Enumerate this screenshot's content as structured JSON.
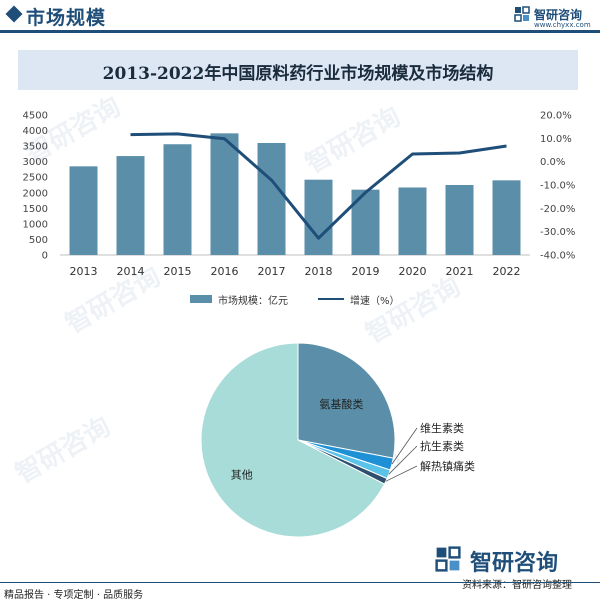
{
  "header": {
    "title": "市场规模",
    "brand_name": "智研咨询",
    "brand_url": "www.chyxx.com"
  },
  "chart_title": "2013-2022年中国原料药行业市场规模及市场结构",
  "chart_data": [
    {
      "type": "bar",
      "title": "2013-2022年中国原料药行业市场规模及市场结构",
      "categories": [
        "2013",
        "2014",
        "2015",
        "2016",
        "2017",
        "2018",
        "2019",
        "2020",
        "2021",
        "2022"
      ],
      "series": [
        {
          "name": "市场规模：亿元",
          "type": "bar",
          "axis": "left",
          "color": "#5b8ea9",
          "values": [
            2850,
            3180,
            3560,
            3910,
            3600,
            2420,
            2100,
            2170,
            2250,
            2400
          ]
        },
        {
          "name": "增速（%）",
          "type": "line",
          "axis": "right",
          "color": "#1f4e79",
          "values": [
            null,
            11.6,
            11.9,
            9.8,
            -7.9,
            -32.8,
            -13.2,
            3.3,
            3.7,
            6.7
          ]
        }
      ],
      "y_left": {
        "ylim": [
          0,
          4500
        ],
        "ticks": [
          "0",
          "500",
          "1000",
          "1500",
          "2000",
          "2500",
          "3000",
          "3500",
          "4000",
          "4500"
        ]
      },
      "y_right": {
        "ylim": [
          -40,
          20
        ],
        "ticks": [
          "20.0%",
          "10.0%",
          "0.0%",
          "-10.0%",
          "-20.0%",
          "-30.0%",
          "-40.0%"
        ]
      },
      "legend": "bottom-center",
      "grid": false
    },
    {
      "type": "pie",
      "labels": [
        "氨基酸类",
        "维生素类",
        "抗生素类",
        "解热镇痛类",
        "其他"
      ],
      "values": [
        28,
        2,
        1.5,
        1,
        67.5
      ],
      "colors": [
        "#5b8ea9",
        "#1e90d6",
        "#5bc3e8",
        "#2f4f6f",
        "#a8dcd9"
      ]
    }
  ],
  "legend": {
    "bar_label": "市场规模：亿元",
    "line_label": "增速（%）"
  },
  "footer": {
    "left": "精品报告 · 专项定制 · 品质服务",
    "right": "资料来源：智研咨询整理",
    "brand_name": "智研咨询"
  },
  "watermark": "智研咨询"
}
